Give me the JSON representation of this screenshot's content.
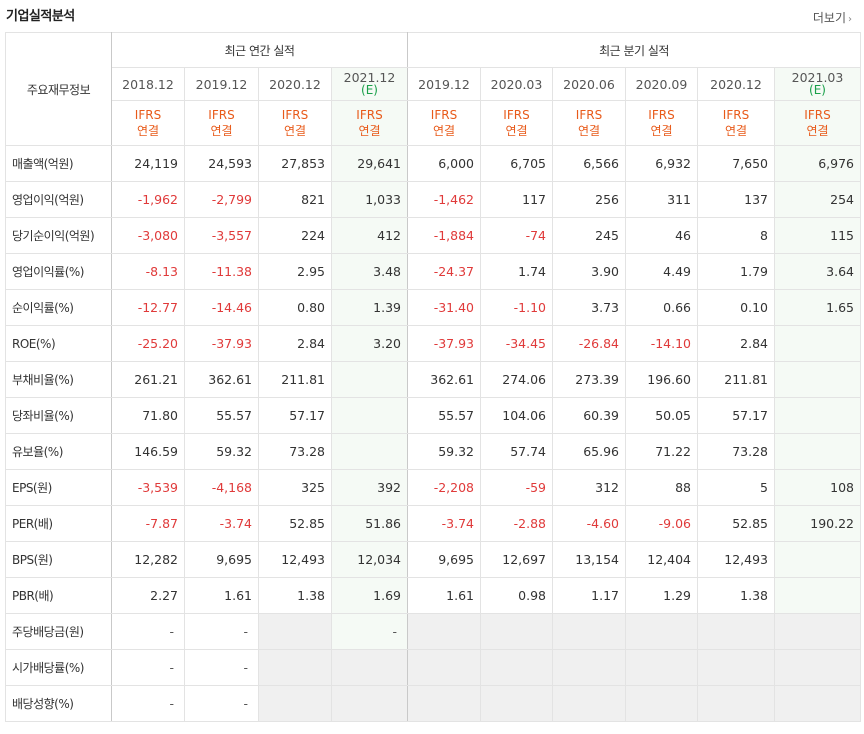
{
  "section_title": "기업실적분석",
  "more_label": "더보기",
  "header": {
    "row_label": "주요재무정보",
    "annual_group": "최근 연간 실적",
    "quarter_group": "최근 분기 실적",
    "annual_dates": [
      "2018.12",
      "2019.12",
      "2020.12",
      "2021.12"
    ],
    "quarter_dates": [
      "2019.12",
      "2020.03",
      "2020.06",
      "2020.09",
      "2020.12",
      "2021.03"
    ],
    "estimate_mark": "(E)",
    "ifrs_line1": "IFRS",
    "ifrs_line2": "연결"
  },
  "rows": [
    {
      "label": "매출액(억원)",
      "values": [
        "24,119",
        "24,593",
        "27,853",
        "29,641",
        "6,000",
        "6,705",
        "6,566",
        "6,932",
        "7,650",
        "6,976"
      ]
    },
    {
      "label": "영업이익(억원)",
      "values": [
        "-1,962",
        "-2,799",
        "821",
        "1,033",
        "-1,462",
        "117",
        "256",
        "311",
        "137",
        "254"
      ]
    },
    {
      "label": "당기순이익(억원)",
      "values": [
        "-3,080",
        "-3,557",
        "224",
        "412",
        "-1,884",
        "-74",
        "245",
        "46",
        "8",
        "115"
      ]
    },
    {
      "label": "영업이익률(%)",
      "values": [
        "-8.13",
        "-11.38",
        "2.95",
        "3.48",
        "-24.37",
        "1.74",
        "3.90",
        "4.49",
        "1.79",
        "3.64"
      ]
    },
    {
      "label": "순이익률(%)",
      "values": [
        "-12.77",
        "-14.46",
        "0.80",
        "1.39",
        "-31.40",
        "-1.10",
        "3.73",
        "0.66",
        "0.10",
        "1.65"
      ]
    },
    {
      "label": "ROE(%)",
      "values": [
        "-25.20",
        "-37.93",
        "2.84",
        "3.20",
        "-37.93",
        "-34.45",
        "-26.84",
        "-14.10",
        "2.84",
        ""
      ]
    },
    {
      "label": "부채비율(%)",
      "values": [
        "261.21",
        "362.61",
        "211.81",
        "",
        "362.61",
        "274.06",
        "273.39",
        "196.60",
        "211.81",
        ""
      ]
    },
    {
      "label": "당좌비율(%)",
      "values": [
        "71.80",
        "55.57",
        "57.17",
        "",
        "55.57",
        "104.06",
        "60.39",
        "50.05",
        "57.17",
        ""
      ]
    },
    {
      "label": "유보율(%)",
      "values": [
        "146.59",
        "59.32",
        "73.28",
        "",
        "59.32",
        "57.74",
        "65.96",
        "71.22",
        "73.28",
        ""
      ]
    },
    {
      "label": "EPS(원)",
      "values": [
        "-3,539",
        "-4,168",
        "325",
        "392",
        "-2,208",
        "-59",
        "312",
        "88",
        "5",
        "108"
      ]
    },
    {
      "label": "PER(배)",
      "values": [
        "-7.87",
        "-3.74",
        "52.85",
        "51.86",
        "-3.74",
        "-2.88",
        "-4.60",
        "-9.06",
        "52.85",
        "190.22"
      ]
    },
    {
      "label": "BPS(원)",
      "values": [
        "12,282",
        "9,695",
        "12,493",
        "12,034",
        "9,695",
        "12,697",
        "13,154",
        "12,404",
        "12,493",
        ""
      ]
    },
    {
      "label": "PBR(배)",
      "values": [
        "2.27",
        "1.61",
        "1.38",
        "1.69",
        "1.61",
        "0.98",
        "1.17",
        "1.29",
        "1.38",
        ""
      ]
    },
    {
      "label": "주당배당금(원)",
      "values": [
        "-",
        "-",
        "",
        "-",
        "",
        "",
        "",
        "",
        "",
        ""
      ],
      "gray": [
        false,
        false,
        true,
        false,
        true,
        true,
        true,
        true,
        true,
        true
      ]
    },
    {
      "label": "시가배당률(%)",
      "values": [
        "-",
        "-",
        "",
        "",
        "",
        "",
        "",
        "",
        "",
        ""
      ],
      "gray": [
        false,
        false,
        true,
        true,
        true,
        true,
        true,
        true,
        true,
        true
      ]
    },
    {
      "label": "배당성향(%)",
      "values": [
        "-",
        "-",
        "",
        "",
        "",
        "",
        "",
        "",
        "",
        ""
      ],
      "gray": [
        false,
        false,
        true,
        true,
        true,
        true,
        true,
        true,
        true,
        true
      ]
    }
  ],
  "colors": {
    "negative": "#e03a3a",
    "ifrs": "#e85a1a",
    "estimate": "#1aa04a",
    "estimate_bg": "#f5faf5"
  }
}
